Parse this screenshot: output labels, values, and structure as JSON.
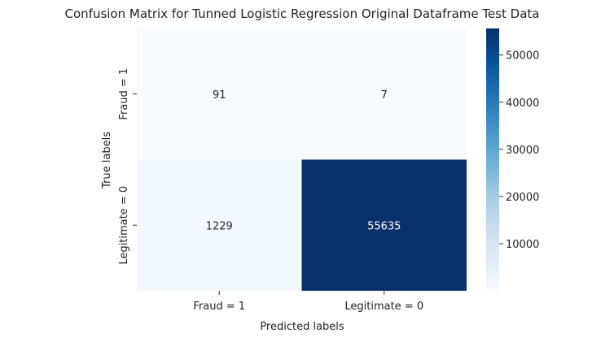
{
  "chart_data": {
    "type": "heatmap",
    "title": "Confusion Matrix for Tunned Logistic Regression Original Dataframe Test Data",
    "xlabel": "Predicted labels",
    "ylabel": "True labels",
    "x_categories": [
      "Fraud = 1",
      "Legitimate = 0"
    ],
    "y_categories": [
      "Fraud = 1",
      "Legitimate = 0"
    ],
    "values": [
      [
        91,
        7
      ],
      [
        1229,
        55635
      ]
    ],
    "colormap": "Blues",
    "color_min": "#f7fbff",
    "color_max": "#08306b",
    "colorbar": {
      "range": [
        7,
        55635
      ],
      "ticks": [
        10000,
        20000,
        30000,
        40000,
        50000
      ],
      "tick_labels": [
        "10000",
        "20000",
        "30000",
        "40000",
        "50000"
      ]
    }
  }
}
